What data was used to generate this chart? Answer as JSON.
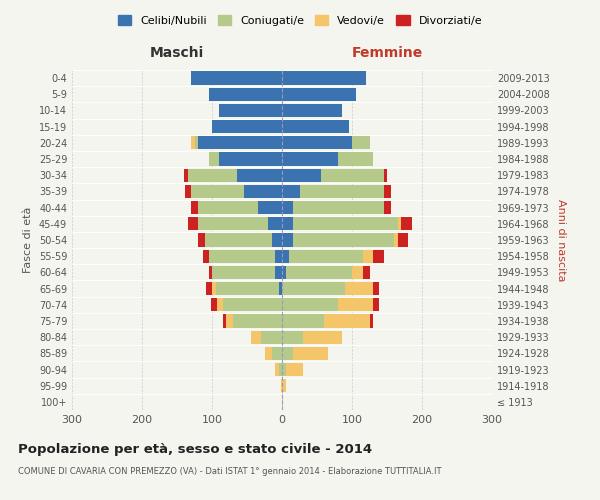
{
  "age_groups": [
    "100+",
    "95-99",
    "90-94",
    "85-89",
    "80-84",
    "75-79",
    "70-74",
    "65-69",
    "60-64",
    "55-59",
    "50-54",
    "45-49",
    "40-44",
    "35-39",
    "30-34",
    "25-29",
    "20-24",
    "15-19",
    "10-14",
    "5-9",
    "0-4"
  ],
  "birth_years": [
    "≤ 1913",
    "1914-1918",
    "1919-1923",
    "1924-1928",
    "1929-1933",
    "1934-1938",
    "1939-1943",
    "1944-1948",
    "1949-1953",
    "1954-1958",
    "1959-1963",
    "1964-1968",
    "1969-1973",
    "1974-1978",
    "1979-1983",
    "1984-1988",
    "1989-1993",
    "1994-1998",
    "1999-2003",
    "2004-2008",
    "2009-2013"
  ],
  "maschi": {
    "celibi": [
      0,
      0,
      0,
      0,
      0,
      0,
      0,
      5,
      10,
      10,
      15,
      20,
      35,
      55,
      65,
      90,
      120,
      100,
      90,
      105,
      130
    ],
    "coniugati": [
      0,
      0,
      5,
      15,
      30,
      70,
      85,
      90,
      90,
      95,
      95,
      100,
      85,
      75,
      70,
      15,
      5,
      0,
      0,
      0,
      0
    ],
    "vedovi": [
      0,
      2,
      5,
      10,
      15,
      10,
      8,
      5,
      0,
      0,
      0,
      0,
      0,
      0,
      0,
      0,
      5,
      0,
      0,
      0,
      0
    ],
    "divorziati": [
      0,
      0,
      0,
      0,
      0,
      5,
      8,
      8,
      5,
      8,
      10,
      15,
      10,
      8,
      5,
      0,
      0,
      0,
      0,
      0,
      0
    ]
  },
  "femmine": {
    "nubili": [
      0,
      0,
      0,
      0,
      0,
      0,
      0,
      0,
      5,
      10,
      15,
      15,
      15,
      25,
      55,
      80,
      100,
      95,
      85,
      105,
      120
    ],
    "coniugate": [
      0,
      0,
      5,
      15,
      30,
      60,
      80,
      90,
      95,
      105,
      145,
      150,
      130,
      120,
      90,
      50,
      25,
      0,
      0,
      0,
      0
    ],
    "vedove": [
      2,
      5,
      25,
      50,
      55,
      65,
      50,
      40,
      15,
      15,
      5,
      5,
      0,
      0,
      0,
      0,
      0,
      0,
      0,
      0,
      0
    ],
    "divorziate": [
      0,
      0,
      0,
      0,
      0,
      5,
      8,
      8,
      10,
      15,
      15,
      15,
      10,
      10,
      5,
      0,
      0,
      0,
      0,
      0,
      0
    ]
  },
  "colors": {
    "celibi_nubili": "#3b72b0",
    "coniugati": "#b5c98b",
    "vedovi": "#f5c56a",
    "divorziati": "#cc2222"
  },
  "xlim": 300,
  "title": "Popolazione per età, sesso e stato civile - 2014",
  "subtitle": "COMUNE DI CAVARIA CON PREMEZZO (VA) - Dati ISTAT 1° gennaio 2014 - Elaborazione TUTTITALIA.IT",
  "ylabel_left": "Fasce di età",
  "ylabel_right": "Anni di nascita",
  "xlabel_left": "Maschi",
  "xlabel_right": "Femmine",
  "bg_color": "#f5f5f0",
  "grid_color": "#cccccc"
}
